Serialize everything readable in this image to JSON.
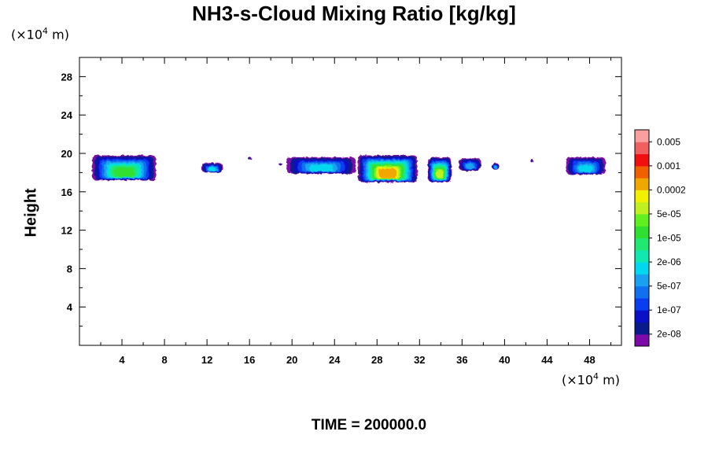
{
  "chart_data": {
    "type": "heatmap",
    "title": "NH3-s-Cloud Mixing Ratio [kg/kg]",
    "ylabel": "Height",
    "xlabel": "",
    "x_unit_prefix": "(×10",
    "x_unit_exp": "4",
    "x_unit_suffix": " m)",
    "y_unit_prefix": "(×10",
    "y_unit_exp": "4",
    "y_unit_suffix": " m)",
    "xlim": [
      0,
      51
    ],
    "ylim": [
      0,
      30
    ],
    "x_ticks": [
      4,
      8,
      12,
      16,
      20,
      24,
      28,
      32,
      36,
      40,
      44,
      48
    ],
    "y_ticks": [
      4,
      8,
      12,
      16,
      20,
      24,
      28
    ],
    "colorbar": {
      "colors": [
        "#7b0aa8",
        "#0a1a8c",
        "#0a10c8",
        "#0a3cf0",
        "#1070f0",
        "#1aa0f0",
        "#00d8f0",
        "#10e8b0",
        "#20e870",
        "#30e030",
        "#60f020",
        "#c0f020",
        "#f0f000",
        "#f0a800",
        "#f06000",
        "#f01010",
        "#f06060",
        "#f8a0a0"
      ],
      "labels": [
        "2e-08",
        "1e-07",
        "5e-07",
        "2e-06",
        "1e-05",
        "5e-05",
        "0.0002",
        "0.001",
        "0.005"
      ]
    },
    "cloud_regions": [
      {
        "x": [
          1.2,
          7.2
        ],
        "y": [
          17.2,
          19.8
        ],
        "max_level": "1e-05"
      },
      {
        "x": [
          11.5,
          13.5
        ],
        "y": [
          18.0,
          19.0
        ],
        "max_level": "5e-06"
      },
      {
        "x": [
          15.9,
          16.2
        ],
        "y": [
          19.3,
          19.6
        ],
        "max_level": "2e-08"
      },
      {
        "x": [
          18.8,
          19.1
        ],
        "y": [
          18.7,
          19.0
        ],
        "max_level": "2e-08"
      },
      {
        "x": [
          19.5,
          26.0
        ],
        "y": [
          17.9,
          19.6
        ],
        "max_level": "5e-06"
      },
      {
        "x": [
          26.2,
          31.8
        ],
        "y": [
          17.0,
          19.8
        ],
        "max_level": "0.0002"
      },
      {
        "x": [
          32.8,
          35.0
        ],
        "y": [
          17.0,
          19.6
        ],
        "max_level": "5e-05"
      },
      {
        "x": [
          35.7,
          37.8
        ],
        "y": [
          18.2,
          19.5
        ],
        "max_level": "5e-07"
      },
      {
        "x": [
          38.8,
          39.5
        ],
        "y": [
          18.3,
          19.0
        ],
        "max_level": "5e-07"
      },
      {
        "x": [
          42.4,
          42.7
        ],
        "y": [
          19.1,
          19.4
        ],
        "max_level": "2e-08"
      },
      {
        "x": [
          45.8,
          49.5
        ],
        "y": [
          17.8,
          19.6
        ],
        "max_level": "5e-06"
      }
    ]
  },
  "footer": {
    "time_label": "TIME = 200000.0"
  }
}
